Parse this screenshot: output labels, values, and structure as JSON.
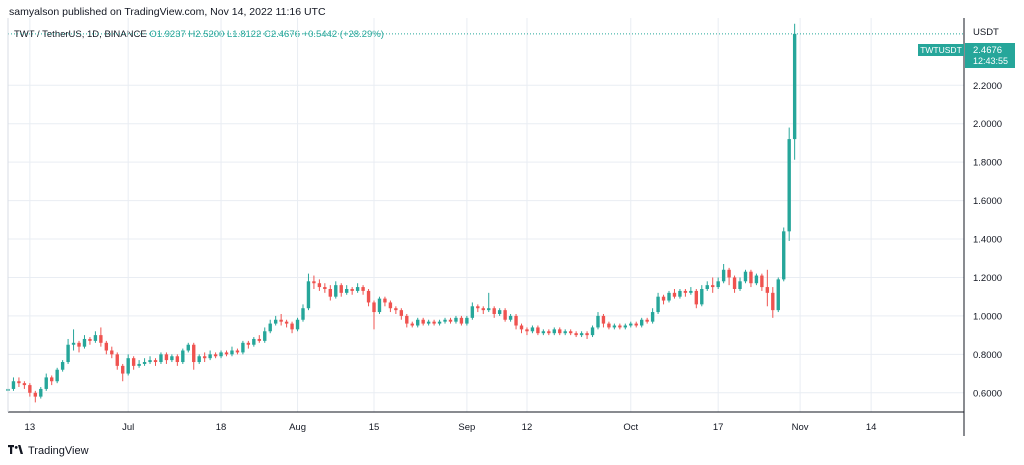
{
  "header": {
    "published": "samyalson published on TradingView.com, Nov 14, 2022 11:16 UTC",
    "symbol": "TWT / TetherUS, 1D, BINANCE",
    "open": "O1.9237",
    "high": "H2.5200",
    "low": "L1.8122",
    "close": "C2.4676",
    "change": "+0.5442 (+28.29%)"
  },
  "footer": {
    "brand": "TradingView",
    "logo_icon": "tradingview-logo-icon"
  },
  "colors": {
    "up": "#26a69a",
    "down": "#ef5350",
    "grid": "#e9edf3",
    "axis": "#131722"
  },
  "chart_data": {
    "type": "candlestick",
    "title": "TWT / TetherUS, 1D, BINANCE",
    "ylabel": "USDT",
    "ylim": [
      0.5,
      2.55
    ],
    "xlim": [
      "2022-06-09",
      "2022-12-01"
    ],
    "y_ticks": [
      "0.6000",
      "0.8000",
      "1.0000",
      "1.2000",
      "1.4000",
      "1.6000",
      "1.8000",
      "2.0000",
      "2.2000"
    ],
    "x_ticks": [
      {
        "label": "13",
        "date": "2022-06-13"
      },
      {
        "label": "Jul",
        "date": "2022-07-01"
      },
      {
        "label": "18",
        "date": "2022-07-18"
      },
      {
        "label": "Aug",
        "date": "2022-08-01"
      },
      {
        "label": "15",
        "date": "2022-08-15"
      },
      {
        "label": "Sep",
        "date": "2022-09-01"
      },
      {
        "label": "12",
        "date": "2022-09-12"
      },
      {
        "label": "Oct",
        "date": "2022-10-01"
      },
      {
        "label": "17",
        "date": "2022-10-17"
      },
      {
        "label": "Nov",
        "date": "2022-11-01"
      },
      {
        "label": "14",
        "date": "2022-11-14"
      }
    ],
    "last_price": {
      "symbol": "TWTUSDT",
      "price": "2.4676",
      "countdown": "12:43:55",
      "value": 2.4676
    },
    "start_date": "2022-06-09",
    "candles": [
      [
        0.61,
        0.62,
        0.59,
        0.63
      ],
      [
        0.62,
        0.66,
        0.61,
        0.68
      ],
      [
        0.66,
        0.65,
        0.63,
        0.68
      ],
      [
        0.65,
        0.64,
        0.62,
        0.66
      ],
      [
        0.64,
        0.6,
        0.58,
        0.65
      ],
      [
        0.6,
        0.58,
        0.55,
        0.61
      ],
      [
        0.58,
        0.62,
        0.57,
        0.63
      ],
      [
        0.62,
        0.68,
        0.61,
        0.7
      ],
      [
        0.68,
        0.66,
        0.64,
        0.69
      ],
      [
        0.66,
        0.72,
        0.65,
        0.73
      ],
      [
        0.72,
        0.76,
        0.71,
        0.77
      ],
      [
        0.76,
        0.85,
        0.75,
        0.88
      ],
      [
        0.85,
        0.86,
        0.82,
        0.93
      ],
      [
        0.86,
        0.84,
        0.81,
        0.87
      ],
      [
        0.84,
        0.88,
        0.83,
        0.9
      ],
      [
        0.88,
        0.87,
        0.85,
        0.89
      ],
      [
        0.87,
        0.9,
        0.86,
        0.92
      ],
      [
        0.9,
        0.86,
        0.84,
        0.94
      ],
      [
        0.86,
        0.82,
        0.8,
        0.87
      ],
      [
        0.82,
        0.8,
        0.78,
        0.84
      ],
      [
        0.8,
        0.74,
        0.72,
        0.81
      ],
      [
        0.74,
        0.7,
        0.66,
        0.75
      ],
      [
        0.7,
        0.78,
        0.69,
        0.8
      ],
      [
        0.78,
        0.74,
        0.72,
        0.79
      ],
      [
        0.74,
        0.75,
        0.73,
        0.77
      ],
      [
        0.75,
        0.76,
        0.74,
        0.78
      ],
      [
        0.76,
        0.77,
        0.75,
        0.79
      ],
      [
        0.77,
        0.76,
        0.74,
        0.78
      ],
      [
        0.76,
        0.8,
        0.75,
        0.81
      ],
      [
        0.8,
        0.77,
        0.75,
        0.81
      ],
      [
        0.77,
        0.79,
        0.76,
        0.8
      ],
      [
        0.79,
        0.76,
        0.74,
        0.8
      ],
      [
        0.76,
        0.82,
        0.75,
        0.83
      ],
      [
        0.82,
        0.85,
        0.81,
        0.86
      ],
      [
        0.85,
        0.76,
        0.72,
        0.86
      ],
      [
        0.76,
        0.79,
        0.75,
        0.8
      ],
      [
        0.79,
        0.78,
        0.76,
        0.81
      ],
      [
        0.78,
        0.8,
        0.77,
        0.82
      ],
      [
        0.8,
        0.79,
        0.78,
        0.81
      ],
      [
        0.79,
        0.81,
        0.78,
        0.82
      ],
      [
        0.81,
        0.8,
        0.79,
        0.82
      ],
      [
        0.8,
        0.82,
        0.79,
        0.84
      ],
      [
        0.82,
        0.81,
        0.8,
        0.83
      ],
      [
        0.81,
        0.86,
        0.8,
        0.87
      ],
      [
        0.86,
        0.85,
        0.83,
        0.87
      ],
      [
        0.85,
        0.88,
        0.84,
        0.89
      ],
      [
        0.88,
        0.87,
        0.86,
        0.9
      ],
      [
        0.87,
        0.92,
        0.86,
        0.94
      ],
      [
        0.92,
        0.96,
        0.91,
        0.98
      ],
      [
        0.96,
        0.98,
        0.95,
        1.0
      ],
      [
        0.98,
        0.97,
        0.95,
        1.01
      ],
      [
        0.97,
        0.96,
        0.94,
        0.98
      ],
      [
        0.96,
        0.93,
        0.91,
        0.97
      ],
      [
        0.93,
        0.98,
        0.92,
        0.99
      ],
      [
        0.98,
        1.04,
        0.97,
        1.06
      ],
      [
        1.04,
        1.18,
        1.03,
        1.22
      ],
      [
        1.18,
        1.17,
        1.14,
        1.21
      ],
      [
        1.17,
        1.15,
        1.13,
        1.19
      ],
      [
        1.15,
        1.14,
        1.12,
        1.17
      ],
      [
        1.14,
        1.1,
        1.08,
        1.16
      ],
      [
        1.1,
        1.16,
        1.09,
        1.18
      ],
      [
        1.16,
        1.12,
        1.1,
        1.17
      ],
      [
        1.12,
        1.14,
        1.11,
        1.16
      ],
      [
        1.14,
        1.13,
        1.11,
        1.15
      ],
      [
        1.13,
        1.15,
        1.12,
        1.17
      ],
      [
        1.15,
        1.13,
        1.11,
        1.16
      ],
      [
        1.13,
        1.07,
        1.05,
        1.14
      ],
      [
        1.07,
        1.02,
        0.93,
        1.08
      ],
      [
        1.02,
        1.09,
        1.01,
        1.1
      ],
      [
        1.09,
        1.07,
        1.05,
        1.1
      ],
      [
        1.07,
        1.04,
        1.02,
        1.08
      ],
      [
        1.04,
        1.03,
        1.01,
        1.05
      ],
      [
        1.03,
        1.0,
        0.98,
        1.04
      ],
      [
        1.0,
        0.96,
        0.94,
        1.01
      ],
      [
        0.96,
        0.95,
        0.94,
        0.97
      ],
      [
        0.95,
        0.98,
        0.94,
        0.99
      ],
      [
        0.98,
        0.96,
        0.95,
        0.99
      ],
      [
        0.96,
        0.97,
        0.95,
        0.98
      ],
      [
        0.97,
        0.96,
        0.95,
        0.98
      ],
      [
        0.96,
        0.97,
        0.95,
        0.98
      ],
      [
        0.97,
        0.98,
        0.96,
        0.99
      ],
      [
        0.98,
        0.97,
        0.96,
        0.99
      ],
      [
        0.97,
        0.99,
        0.96,
        1.0
      ],
      [
        0.99,
        0.96,
        0.95,
        1.0
      ],
      [
        0.96,
        0.99,
        0.95,
        1.0
      ],
      [
        0.99,
        1.05,
        0.98,
        1.07
      ],
      [
        1.05,
        1.04,
        1.02,
        1.06
      ],
      [
        1.04,
        1.03,
        1.01,
        1.05
      ],
      [
        1.03,
        1.04,
        1.02,
        1.12
      ],
      [
        1.04,
        1.01,
        0.99,
        1.05
      ],
      [
        1.01,
        1.03,
        1.0,
        1.04
      ],
      [
        1.03,
        0.98,
        0.97,
        1.04
      ],
      [
        0.98,
        1.0,
        0.97,
        1.01
      ],
      [
        1.0,
        0.95,
        0.93,
        1.01
      ],
      [
        0.95,
        0.93,
        0.91,
        0.96
      ],
      [
        0.93,
        0.92,
        0.9,
        0.94
      ],
      [
        0.92,
        0.94,
        0.91,
        0.95
      ],
      [
        0.94,
        0.91,
        0.9,
        0.95
      ],
      [
        0.91,
        0.92,
        0.9,
        0.93
      ],
      [
        0.92,
        0.91,
        0.9,
        0.93
      ],
      [
        0.91,
        0.93,
        0.9,
        0.94
      ],
      [
        0.93,
        0.91,
        0.9,
        0.94
      ],
      [
        0.91,
        0.92,
        0.9,
        0.93
      ],
      [
        0.92,
        0.91,
        0.9,
        0.93
      ],
      [
        0.91,
        0.9,
        0.89,
        0.92
      ],
      [
        0.9,
        0.91,
        0.89,
        0.92
      ],
      [
        0.91,
        0.9,
        0.88,
        0.92
      ],
      [
        0.9,
        0.94,
        0.89,
        0.95
      ],
      [
        0.94,
        1.0,
        0.93,
        1.02
      ],
      [
        1.0,
        0.96,
        0.94,
        1.01
      ],
      [
        0.96,
        0.94,
        0.93,
        0.97
      ],
      [
        0.94,
        0.95,
        0.93,
        0.96
      ],
      [
        0.95,
        0.94,
        0.93,
        0.96
      ],
      [
        0.94,
        0.95,
        0.93,
        0.96
      ],
      [
        0.95,
        0.96,
        0.94,
        0.97
      ],
      [
        0.96,
        0.95,
        0.94,
        0.97
      ],
      [
        0.95,
        0.98,
        0.94,
        0.99
      ],
      [
        0.98,
        0.97,
        0.96,
        0.99
      ],
      [
        0.97,
        1.02,
        0.96,
        1.04
      ],
      [
        1.02,
        1.1,
        1.01,
        1.12
      ],
      [
        1.1,
        1.08,
        1.06,
        1.11
      ],
      [
        1.08,
        1.12,
        1.07,
        1.13
      ],
      [
        1.12,
        1.1,
        1.09,
        1.14
      ],
      [
        1.1,
        1.13,
        1.09,
        1.14
      ],
      [
        1.13,
        1.12,
        1.1,
        1.14
      ],
      [
        1.12,
        1.13,
        1.11,
        1.15
      ],
      [
        1.13,
        1.06,
        1.04,
        1.14
      ],
      [
        1.06,
        1.14,
        1.05,
        1.16
      ],
      [
        1.14,
        1.16,
        1.13,
        1.18
      ],
      [
        1.16,
        1.15,
        1.12,
        1.2
      ],
      [
        1.15,
        1.18,
        1.14,
        1.2
      ],
      [
        1.18,
        1.24,
        1.17,
        1.27
      ],
      [
        1.24,
        1.2,
        1.16,
        1.25
      ],
      [
        1.2,
        1.14,
        1.12,
        1.21
      ],
      [
        1.14,
        1.18,
        1.13,
        1.2
      ],
      [
        1.18,
        1.23,
        1.17,
        1.24
      ],
      [
        1.23,
        1.17,
        1.15,
        1.24
      ],
      [
        1.17,
        1.21,
        1.16,
        1.22
      ],
      [
        1.21,
        1.15,
        1.13,
        1.22
      ],
      [
        1.15,
        1.12,
        1.05,
        1.24
      ],
      [
        1.12,
        1.03,
        0.99,
        1.15
      ],
      [
        1.03,
        1.19,
        1.02,
        1.2
      ],
      [
        1.19,
        1.44,
        1.18,
        1.46
      ],
      [
        1.44,
        1.92,
        1.39,
        1.98
      ],
      [
        1.92,
        2.4676,
        1.8122,
        2.52
      ]
    ]
  }
}
